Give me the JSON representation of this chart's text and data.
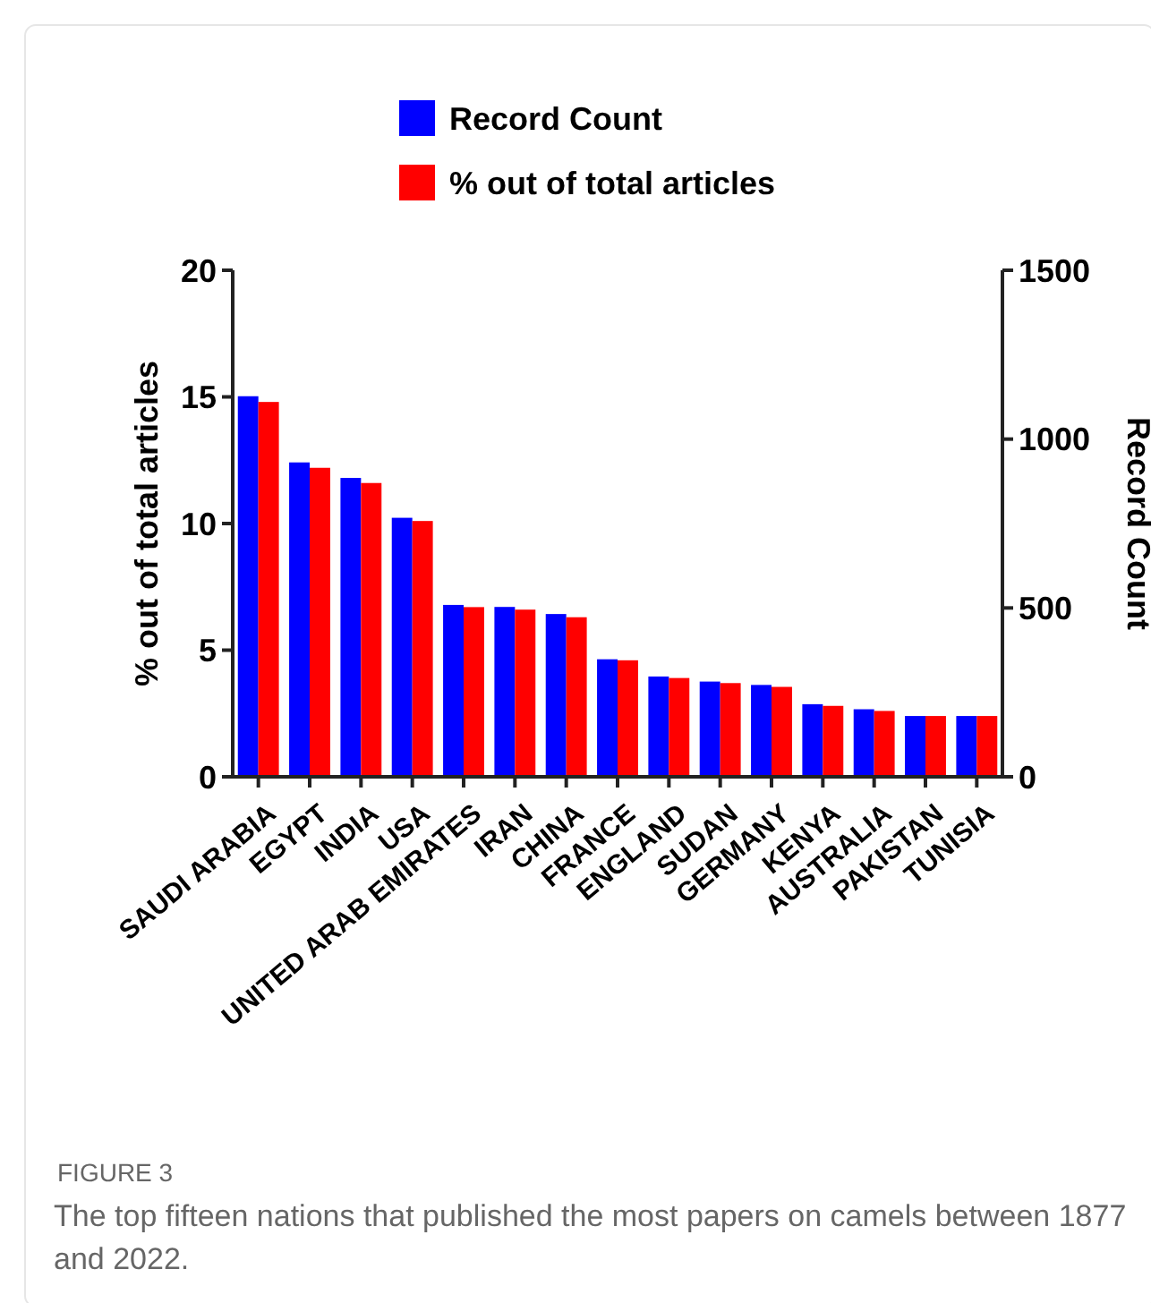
{
  "chart_data": {
    "type": "bar",
    "xlabel": null,
    "ylabel": "% out of total articles",
    "y2label": "Record Count",
    "categories": [
      "SAUDI ARABIA",
      "EGYPT",
      "INDIA",
      "USA",
      "UNITED ARAB EMIRATES",
      "IRAN",
      "CHINA",
      "FRANCE",
      "ENGLAND",
      "SUDAN",
      "GERMANY",
      "KENYA",
      "AUSTRALIA",
      "PAKISTAN",
      "TUNISIA"
    ],
    "series": [
      {
        "name": "Record Count",
        "color": "#0000ff",
        "axis": "y2",
        "values": [
          1127,
          931,
          885,
          767,
          509,
          503,
          482,
          348,
          297,
          282,
          272,
          215,
          200,
          180,
          180
        ]
      },
      {
        "name": "% out of total articles",
        "color": "#ff0000",
        "values": [
          14.8,
          12.2,
          11.6,
          10.1,
          6.7,
          6.6,
          6.3,
          4.6,
          3.9,
          3.7,
          3.55,
          2.8,
          2.6,
          2.4,
          2.4
        ]
      }
    ],
    "ylim": [
      0,
      20
    ],
    "yticks": [
      0,
      5,
      10,
      15,
      20
    ],
    "y2lim": [
      0,
      1500
    ],
    "y2ticks": [
      0,
      500,
      1000,
      1500
    ],
    "legend": "top",
    "grid": false,
    "annotations": [
      "FIGURE 3",
      "The top fifteen nations that published the most papers on camels between 1877 and 2022."
    ]
  }
}
